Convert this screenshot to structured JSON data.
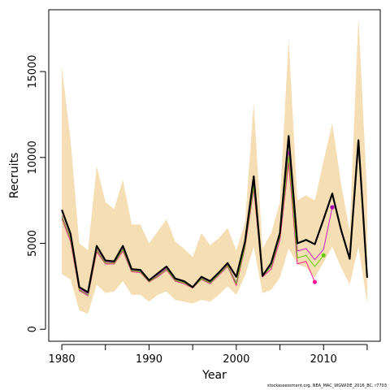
{
  "chart_data": {
    "type": "line",
    "xlabel": "Year",
    "ylabel": "Recruits",
    "xlim": [
      1978.5,
      2016.5
    ],
    "ylim": [
      -700,
      18600
    ],
    "x_ticks": [
      1980,
      1990,
      2000,
      2010
    ],
    "y_ticks": [
      0,
      5000,
      10000,
      15000
    ],
    "band": {
      "color": "#f5deb3",
      "x": [
        1980,
        1981,
        1982,
        1983,
        1984,
        1985,
        1986,
        1987,
        1988,
        1989,
        1990,
        1991,
        1992,
        1993,
        1994,
        1995,
        1996,
        1997,
        1998,
        1999,
        2000,
        2001,
        2002,
        2003,
        2004,
        2005,
        2006,
        2007,
        2008,
        2009,
        2010,
        2011,
        2012,
        2013,
        2014,
        2015
      ],
      "upper": [
        15300,
        11000,
        5000,
        4600,
        9500,
        7400,
        7000,
        8700,
        6100,
        6100,
        5000,
        5700,
        6400,
        5100,
        4700,
        4200,
        5600,
        4900,
        5300,
        5900,
        4600,
        6200,
        13200,
        4700,
        5600,
        7400,
        16900,
        7500,
        7800,
        7500,
        9800,
        12000,
        8500,
        5700,
        18200,
        7800
      ],
      "lower": [
        3200,
        2900,
        1100,
        900,
        2600,
        2100,
        2200,
        2800,
        2000,
        2000,
        1600,
        2000,
        2200,
        1700,
        1600,
        1500,
        1700,
        1600,
        2000,
        2500,
        2000,
        3100,
        4800,
        2100,
        2300,
        3000,
        4700,
        3800,
        3600,
        3000,
        3900,
        4800,
        3600,
        2600,
        4800,
        1500
      ]
    },
    "series": [
      {
        "color": "#000000",
        "x": [
          1980,
          1981,
          1982,
          1983,
          1984,
          1985,
          1986,
          1987,
          1988,
          1989,
          1990,
          1991,
          1992,
          1993,
          1994,
          1995,
          1996,
          1997,
          1998,
          1999,
          2000,
          2001,
          2002,
          2003,
          2004,
          2005,
          2006,
          2007,
          2008,
          2009,
          2010,
          2011,
          2012,
          2013,
          2014,
          2015
        ],
        "values": [
          6950,
          5550,
          2450,
          2150,
          4850,
          4000,
          3950,
          4850,
          3500,
          3450,
          2850,
          3250,
          3650,
          2950,
          2800,
          2450,
          3050,
          2800,
          3300,
          3850,
          3050,
          5100,
          8900,
          3100,
          3850,
          5600,
          11250,
          5000,
          5200,
          4950,
          6400,
          7900,
          5800,
          4100,
          11000,
          3000
        ]
      },
      {
        "color": "#ff1493",
        "x": [
          1980,
          1981,
          1982,
          1983,
          1984,
          1985,
          1986,
          1987,
          1988,
          1989,
          1990,
          1991,
          1992,
          1993,
          1994,
          1995,
          1996,
          1997,
          1998,
          1999,
          2000,
          2001,
          2002,
          2003,
          2004,
          2005,
          2006,
          2007,
          2008,
          2009
        ],
        "values": [
          6450,
          5100,
          2250,
          1950,
          4500,
          3800,
          3800,
          4550,
          3350,
          3300,
          2750,
          3050,
          3450,
          2800,
          2650,
          2400,
          2900,
          2650,
          3150,
          3650,
          2550,
          4750,
          8150,
          3050,
          3500,
          5200,
          9700,
          3800,
          3950,
          2750
        ]
      },
      {
        "color": "#cc22cc",
        "x": [
          1980,
          1981,
          1982,
          1983,
          1984,
          1985,
          1986,
          1987,
          1988,
          1989,
          1990,
          1991,
          1992,
          1993,
          1994,
          1995,
          1996,
          1997,
          1998,
          1999,
          2000,
          2001,
          2002,
          2003,
          2004,
          2005,
          2006,
          2007,
          2008,
          2009,
          2010,
          2011
        ],
        "values": [
          6600,
          5300,
          2350,
          2050,
          4650,
          3900,
          3880,
          4700,
          3420,
          3380,
          2800,
          3150,
          3550,
          2880,
          2720,
          2450,
          2950,
          2720,
          3250,
          3750,
          2700,
          4900,
          8450,
          3100,
          3700,
          5500,
          10350,
          4550,
          4700,
          4050,
          4650,
          7100
        ]
      },
      {
        "color": "#66cc00",
        "x": [
          1980,
          1981,
          1982,
          1983,
          1984,
          1985,
          1986,
          1987,
          1988,
          1989,
          1990,
          1991,
          1992,
          1993,
          1994,
          1995,
          1996,
          1997,
          1998,
          1999,
          2000,
          2001,
          2002,
          2003,
          2004,
          2005,
          2006,
          2007,
          2008,
          2009,
          2010
        ],
        "values": [
          6550,
          5250,
          2300,
          2000,
          4600,
          3850,
          3850,
          4650,
          3400,
          3350,
          2780,
          3100,
          3500,
          2850,
          2700,
          2420,
          2920,
          2700,
          3200,
          3700,
          2650,
          4850,
          8350,
          3080,
          3650,
          5400,
          10100,
          4150,
          4300,
          3650,
          4300
        ]
      }
    ],
    "endpoints": [
      {
        "color": "#ff1493",
        "x": 2009,
        "y": 2750
      },
      {
        "color": "#66cc00",
        "x": 2010,
        "y": 4300
      },
      {
        "color": "#aa00aa",
        "x": 2011,
        "y": 7100
      }
    ]
  },
  "credit": "stockassessment.org, NEA_MAC_WGWIDE_2016_BC, r7703"
}
